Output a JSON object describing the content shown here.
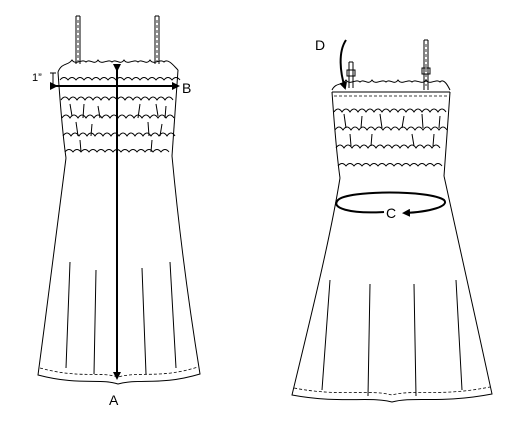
{
  "figures": {
    "front": {
      "measurements": [
        {
          "id": "A",
          "label": "A"
        },
        {
          "id": "B",
          "label": "B"
        }
      ],
      "annotation": "1”"
    },
    "back": {
      "measurements": [
        {
          "id": "C",
          "label": "C"
        },
        {
          "id": "D",
          "label": "D"
        }
      ]
    }
  },
  "colors": {
    "ink": "#000000",
    "background": "#ffffff"
  }
}
